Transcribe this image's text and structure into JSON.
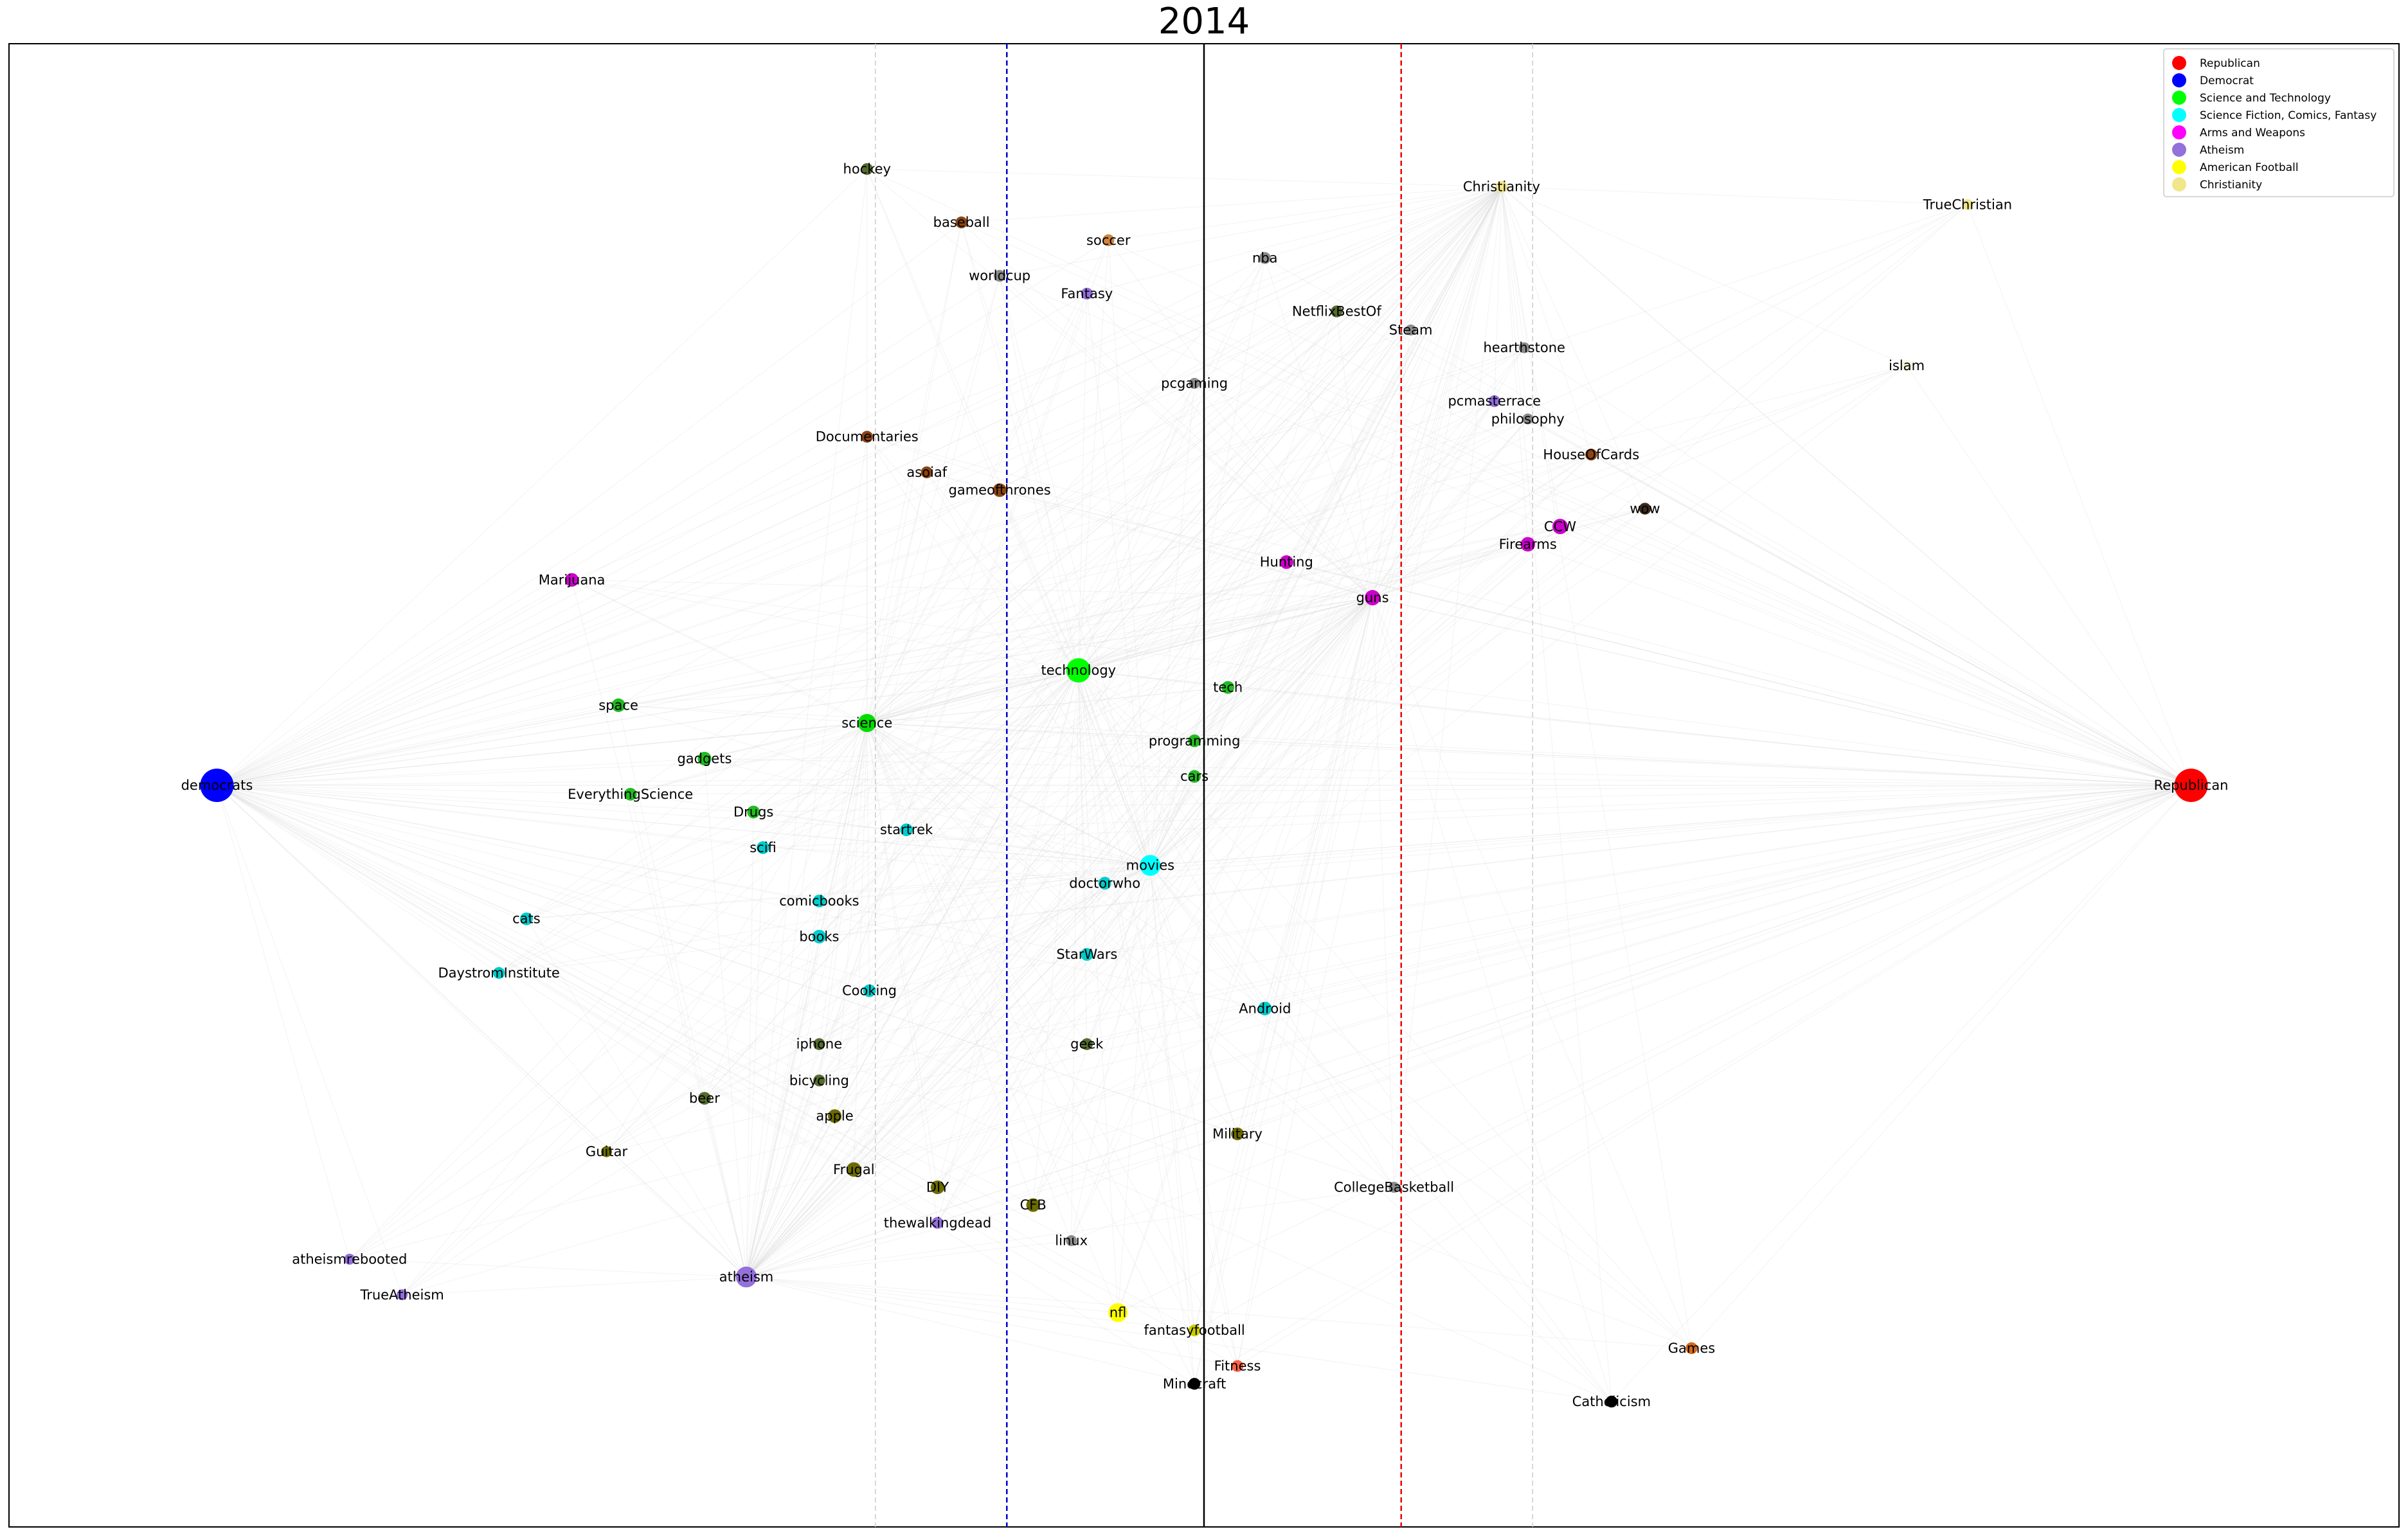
{
  "chart_data": {
    "type": "network",
    "title": "2014",
    "x_range": [
      -1.0,
      1.0
    ],
    "y_range": [
      -1.0,
      1.0
    ],
    "reference_lines": [
      {
        "x": 0.0,
        "color": "#000000",
        "style": "solid"
      },
      {
        "x": -0.165,
        "color": "#0000cc",
        "style": "dashed"
      },
      {
        "x": 0.165,
        "color": "#ee0000",
        "style": "dashed"
      },
      {
        "x": -0.275,
        "color": "#cccccc",
        "style": "dashed"
      },
      {
        "x": 0.275,
        "color": "#cccccc",
        "style": "dashed"
      }
    ],
    "legend": {
      "position": "top-right",
      "entries": [
        {
          "label": "Republican",
          "color": "#ff0000"
        },
        {
          "label": "Democrat",
          "color": "#0000ff"
        },
        {
          "label": "Science and Technology",
          "color": "#00ff00"
        },
        {
          "label": "Science Fiction, Comics, Fantasy",
          "color": "#00ffff"
        },
        {
          "label": "Arms and Weapons",
          "color": "#ff00ff"
        },
        {
          "label": "Atheism",
          "color": "#9370db"
        },
        {
          "label": "American Football",
          "color": "#ffff00"
        },
        {
          "label": "Christianity",
          "color": "#f0e68c"
        }
      ]
    },
    "nodes": [
      {
        "label": "democrats",
        "x": -0.826,
        "y": 0.0,
        "color": "#0000ff",
        "size": 3.0
      },
      {
        "label": "Republican",
        "x": 0.826,
        "y": 0.0,
        "color": "#ff0000",
        "size": 3.0
      },
      {
        "label": "technology",
        "x": -0.105,
        "y": 0.155,
        "color": "#00ff00",
        "size": 2.0
      },
      {
        "label": "movies",
        "x": -0.045,
        "y": -0.108,
        "color": "#00ffff",
        "size": 1.6
      },
      {
        "label": "atheism",
        "x": -0.383,
        "y": -0.663,
        "color": "#9370db",
        "size": 1.6
      },
      {
        "label": "nfl",
        "x": -0.072,
        "y": -0.711,
        "color": "#ffff00",
        "size": 1.4
      },
      {
        "label": "science",
        "x": -0.282,
        "y": 0.084,
        "color": "#00dd00",
        "size": 1.3
      },
      {
        "label": "CCW",
        "x": 0.298,
        "y": 0.349,
        "color": "#cc00cc",
        "size": 1.0
      },
      {
        "label": "Firearms",
        "x": 0.271,
        "y": 0.325,
        "color": "#cc00cc",
        "size": 0.9
      },
      {
        "label": "guns",
        "x": 0.141,
        "y": 0.253,
        "color": "#cc00cc",
        "size": 1.0
      },
      {
        "label": "Hunting",
        "x": 0.069,
        "y": 0.301,
        "color": "#cc00cc",
        "size": 0.8
      },
      {
        "label": "Marijuana",
        "x": -0.529,
        "y": 0.277,
        "color": "#cc00cc",
        "size": 0.8
      },
      {
        "label": "space",
        "x": -0.49,
        "y": 0.108,
        "color": "#22bb22",
        "size": 0.8
      },
      {
        "label": "gadgets",
        "x": -0.418,
        "y": 0.036,
        "color": "#22bb22",
        "size": 0.8
      },
      {
        "label": "EverythingScience",
        "x": -0.48,
        "y": -0.012,
        "color": "#22bb22",
        "size": 0.7
      },
      {
        "label": "Drugs",
        "x": -0.377,
        "y": -0.036,
        "color": "#22bb22",
        "size": 0.7
      },
      {
        "label": "tech",
        "x": 0.02,
        "y": 0.132,
        "color": "#22bb22",
        "size": 0.7
      },
      {
        "label": "programming",
        "x": -0.008,
        "y": 0.06,
        "color": "#22bb22",
        "size": 0.7
      },
      {
        "label": "cars",
        "x": -0.008,
        "y": 0.012,
        "color": "#22bb22",
        "size": 0.7
      },
      {
        "label": "scifi",
        "x": -0.369,
        "y": -0.084,
        "color": "#00cccc",
        "size": 0.7
      },
      {
        "label": "startrek",
        "x": -0.249,
        "y": -0.06,
        "color": "#00cccc",
        "size": 0.7
      },
      {
        "label": "comicbooks",
        "x": -0.322,
        "y": -0.156,
        "color": "#00cccc",
        "size": 0.7
      },
      {
        "label": "books",
        "x": -0.322,
        "y": -0.204,
        "color": "#00cccc",
        "size": 0.8
      },
      {
        "label": "cats",
        "x": -0.567,
        "y": -0.18,
        "color": "#00cccc",
        "size": 0.7
      },
      {
        "label": "DaystromInstitute",
        "x": -0.59,
        "y": -0.253,
        "color": "#00cccc",
        "size": 0.6
      },
      {
        "label": "Cooking",
        "x": -0.28,
        "y": -0.277,
        "color": "#00cccc",
        "size": 0.7
      },
      {
        "label": "doctorwho",
        "x": -0.083,
        "y": -0.132,
        "color": "#00cccc",
        "size": 0.7
      },
      {
        "label": "StarWars",
        "x": -0.098,
        "y": -0.228,
        "color": "#00cccc",
        "size": 0.7
      },
      {
        "label": "Android",
        "x": 0.051,
        "y": -0.301,
        "color": "#00cccc",
        "size": 0.8
      },
      {
        "label": "hockey",
        "x": -0.282,
        "y": 0.831,
        "color": "#556b2f",
        "size": 0.6
      },
      {
        "label": "baseball",
        "x": -0.203,
        "y": 0.759,
        "color": "#8b4513",
        "size": 0.6
      },
      {
        "label": "worldcup",
        "x": -0.171,
        "y": 0.687,
        "color": "#8b8b8b",
        "size": 0.6
      },
      {
        "label": "soccer",
        "x": -0.08,
        "y": 0.735,
        "color": "#cd853f",
        "size": 0.6
      },
      {
        "label": "Fantasy",
        "x": -0.098,
        "y": 0.663,
        "color": "#9370db",
        "size": 0.6
      },
      {
        "label": "nba",
        "x": 0.051,
        "y": 0.711,
        "color": "#8b8b8b",
        "size": 0.6
      },
      {
        "label": "NetflixBestOf",
        "x": 0.111,
        "y": 0.639,
        "color": "#556b2f",
        "size": 0.6
      },
      {
        "label": "Steam",
        "x": 0.173,
        "y": 0.614,
        "color": "#8b8b8b",
        "size": 0.5
      },
      {
        "label": "hearthstone",
        "x": 0.268,
        "y": 0.59,
        "color": "#8b8b8b",
        "size": 0.5
      },
      {
        "label": "pcgaming",
        "x": -0.008,
        "y": 0.542,
        "color": "#8b8b8b",
        "size": 0.5
      },
      {
        "label": "pcmasterrace",
        "x": 0.243,
        "y": 0.518,
        "color": "#9370db",
        "size": 0.6
      },
      {
        "label": "philosophy",
        "x": 0.271,
        "y": 0.494,
        "color": "#8b8b8b",
        "size": 0.5
      },
      {
        "label": "HouseOfCards",
        "x": 0.324,
        "y": 0.446,
        "color": "#8b4513",
        "size": 0.6
      },
      {
        "label": "wow",
        "x": 0.369,
        "y": 0.373,
        "color": "#3b2b1b",
        "size": 0.6
      },
      {
        "label": "Christianity",
        "x": 0.249,
        "y": 0.807,
        "color": "#f0e68c",
        "size": 0.6
      },
      {
        "label": "TrueChristian",
        "x": 0.639,
        "y": 0.783,
        "color": "#f0e68c",
        "size": 0.5
      },
      {
        "label": "islam",
        "x": 0.588,
        "y": 0.566,
        "color": "#f5f5dc",
        "size": 0.5
      },
      {
        "label": "Documentaries",
        "x": -0.282,
        "y": 0.47,
        "color": "#8b4513",
        "size": 0.6
      },
      {
        "label": "asoiaf",
        "x": -0.232,
        "y": 0.422,
        "color": "#8b4513",
        "size": 0.6
      },
      {
        "label": "gameofthrones",
        "x": -0.171,
        "y": 0.398,
        "color": "#8b4513",
        "size": 0.8
      },
      {
        "label": "iphone",
        "x": -0.322,
        "y": -0.349,
        "color": "#556b2f",
        "size": 0.6
      },
      {
        "label": "bicycling",
        "x": -0.322,
        "y": -0.398,
        "color": "#556b2f",
        "size": 0.6
      },
      {
        "label": "beer",
        "x": -0.418,
        "y": -0.422,
        "color": "#556b2f",
        "size": 0.7
      },
      {
        "label": "apple",
        "x": -0.309,
        "y": -0.446,
        "color": "#6b6b00",
        "size": 0.8
      },
      {
        "label": "geek",
        "x": -0.098,
        "y": -0.349,
        "color": "#556b2f",
        "size": 0.6
      },
      {
        "label": "Military",
        "x": 0.028,
        "y": -0.47,
        "color": "#6b6b00",
        "size": 0.7
      },
      {
        "label": "Guitar",
        "x": -0.5,
        "y": -0.494,
        "color": "#6b6b00",
        "size": 0.5
      },
      {
        "label": "Frugal",
        "x": -0.293,
        "y": -0.518,
        "color": "#6b6b00",
        "size": 0.9
      },
      {
        "label": "DIY",
        "x": -0.223,
        "y": -0.542,
        "color": "#6b6b00",
        "size": 0.8
      },
      {
        "label": "CFB",
        "x": -0.143,
        "y": -0.566,
        "color": "#6b6b00",
        "size": 0.8
      },
      {
        "label": "CollegeBasketball",
        "x": 0.159,
        "y": -0.542,
        "color": "#8b8b8b",
        "size": 0.5
      },
      {
        "label": "thewalkingdead",
        "x": -0.223,
        "y": -0.59,
        "color": "#9370db",
        "size": 0.6
      },
      {
        "label": "linux",
        "x": -0.111,
        "y": -0.614,
        "color": "#8b8b8b",
        "size": 0.5
      },
      {
        "label": "atheismrebooted",
        "x": -0.715,
        "y": -0.639,
        "color": "#9370db",
        "size": 0.5
      },
      {
        "label": "TrueAtheism",
        "x": -0.671,
        "y": -0.687,
        "color": "#9370db",
        "size": 0.5
      },
      {
        "label": "fantasyfootball",
        "x": -0.008,
        "y": -0.735,
        "color": "#cccc00",
        "size": 0.6
      },
      {
        "label": "Fitness",
        "x": 0.028,
        "y": -0.783,
        "color": "#ff6347",
        "size": 0.6
      },
      {
        "label": "Minecraft",
        "x": -0.008,
        "y": -0.807,
        "color": "#000000",
        "size": 0.6
      },
      {
        "label": "Games",
        "x": 0.408,
        "y": -0.759,
        "color": "#d2691e",
        "size": 0.6
      },
      {
        "label": "Catholicism",
        "x": 0.341,
        "y": -0.831,
        "color": "#000000",
        "size": 0.6
      }
    ]
  }
}
